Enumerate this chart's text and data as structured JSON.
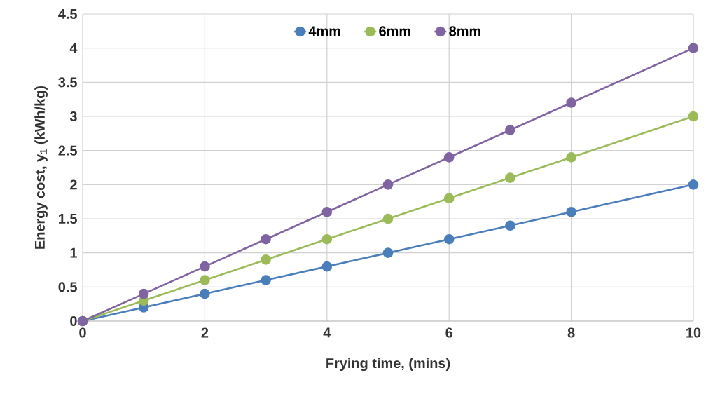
{
  "chart_data": {
    "type": "line",
    "xlabel": "Frying time, (mins)",
    "ylabel": "Energy cost, y$_{1}$ (kWh/kg)",
    "x": [
      0,
      1,
      2,
      3,
      4,
      5,
      6,
      7,
      8,
      10
    ],
    "series": [
      {
        "name": "4mm",
        "color": "#4a7ebb",
        "values": [
          0,
          0.2,
          0.4,
          0.6,
          0.8,
          1.0,
          1.2,
          1.4,
          1.6,
          2.0
        ]
      },
      {
        "name": "6mm",
        "color": "#9bbb59",
        "values": [
          0,
          0.3,
          0.6,
          0.9,
          1.2,
          1.5,
          1.8,
          2.1,
          2.4,
          3.0
        ]
      },
      {
        "name": "8mm",
        "color": "#8064a2",
        "values": [
          0,
          0.4,
          0.8,
          1.2,
          1.6,
          2.0,
          2.4,
          2.8,
          3.2,
          4.0
        ]
      }
    ],
    "xlim": [
      0,
      10
    ],
    "xticks": [
      0,
      2,
      4,
      6,
      8,
      10
    ],
    "ylim": [
      0,
      4.5
    ],
    "yticks": [
      0,
      0.5,
      1,
      1.5,
      2,
      2.5,
      3,
      3.5,
      4,
      4.5
    ],
    "grid": true,
    "legend": "top",
    "marker": "circle",
    "line_style": "solid"
  }
}
